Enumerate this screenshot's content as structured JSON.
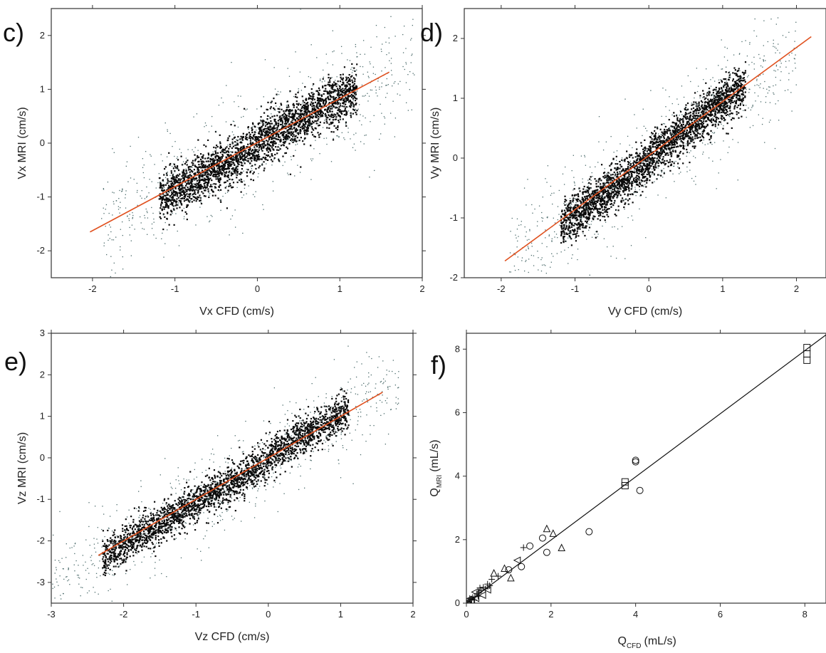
{
  "colors": {
    "points": "#0a0a0a",
    "sparse_points": "#4a6a6a",
    "fit_line": "#e0501e",
    "f_fit_line": "#111111",
    "axis": "#333333"
  },
  "chart_data": [
    {
      "panel": "c)",
      "type": "scatter",
      "xlabel": "Vx CFD (cm/s)",
      "ylabel": "Vx MRI (cm/s)",
      "xlim": [
        -2.5,
        2
      ],
      "ylim": [
        -2.5,
        2.5
      ],
      "xticks": [
        -2,
        -1,
        0,
        1,
        2
      ],
      "yticks": [
        -2,
        -1,
        0,
        1,
        2
      ],
      "fit_line": {
        "x": [
          -2.03,
          1.6
        ],
        "y": [
          -1.65,
          1.32
        ]
      },
      "cloud": {
        "x_range": [
          -1.2,
          1.2
        ],
        "slope": 0.82,
        "spread": 0.22,
        "jump_at_zero": 0.12
      }
    },
    {
      "panel": "d)",
      "type": "scatter",
      "xlabel": "Vy CFD (cm/s)",
      "ylabel": "Vy MRI (cm/s)",
      "xlim": [
        -2.5,
        2.4
      ],
      "ylim": [
        -2,
        2.5
      ],
      "xticks": [
        -2,
        -1,
        0,
        1,
        2
      ],
      "yticks": [
        -2,
        -1,
        0,
        1,
        2
      ],
      "fit_line": {
        "x": [
          -1.95,
          2.2
        ],
        "y": [
          -1.72,
          2.03
        ]
      },
      "cloud": {
        "x_range": [
          -1.2,
          1.3
        ],
        "slope": 0.9,
        "spread": 0.18,
        "jump_at_zero": 0.15
      }
    },
    {
      "panel": "e)",
      "type": "scatter",
      "xlabel": "Vz CFD (cm/s)",
      "ylabel": "Vz MRI (cm/s)",
      "xlim": [
        -3,
        2
      ],
      "ylim": [
        -3.5,
        3
      ],
      "xticks": [
        -3,
        -2,
        -1,
        0,
        1,
        2
      ],
      "yticks": [
        -3,
        -2,
        -1,
        0,
        1,
        2,
        3
      ],
      "fit_line": {
        "x": [
          -2.35,
          1.58
        ],
        "y": [
          -2.35,
          1.58
        ]
      },
      "cloud": {
        "x_range": [
          -2.3,
          1.1
        ],
        "slope": 1.0,
        "spread": 0.22,
        "jump_at_zero": 0.2
      }
    },
    {
      "panel": "f)",
      "type": "scatter",
      "xlabel_main": "Q",
      "xlabel_sub": "CFD",
      "xlabel_unit": "(mL/s)",
      "ylabel_main": "Q",
      "ylabel_sub": "MRI",
      "ylabel_unit": "(mL/s)",
      "xlim": [
        0,
        8.5
      ],
      "ylim": [
        0,
        8.5
      ],
      "xticks": [
        0,
        2,
        4,
        6,
        8
      ],
      "yticks": [
        0,
        2,
        4,
        6,
        8
      ],
      "fit_line": {
        "x": [
          0,
          8.5
        ],
        "y": [
          0,
          8.45
        ]
      },
      "series": [
        {
          "marker": "square",
          "points": [
            [
              8.05,
              8.05
            ],
            [
              8.05,
              7.85
            ],
            [
              8.05,
              7.65
            ],
            [
              3.75,
              3.82
            ],
            [
              3.75,
              3.7
            ]
          ]
        },
        {
          "marker": "circle",
          "points": [
            [
              4.0,
              4.5
            ],
            [
              4.0,
              4.45
            ],
            [
              4.1,
              3.55
            ],
            [
              2.9,
              2.25
            ],
            [
              1.9,
              1.6
            ],
            [
              1.8,
              2.05
            ],
            [
              1.3,
              1.15
            ],
            [
              1.0,
              1.05
            ],
            [
              1.5,
              1.8
            ]
          ]
        },
        {
          "marker": "triangle",
          "points": [
            [
              1.9,
              2.35
            ],
            [
              2.05,
              2.2
            ],
            [
              2.25,
              1.75
            ],
            [
              1.05,
              0.8
            ],
            [
              0.9,
              1.1
            ],
            [
              0.65,
              0.95
            ]
          ]
        },
        {
          "marker": "cross",
          "points": [
            [
              1.35,
              1.75
            ],
            [
              0.75,
              0.85
            ],
            [
              0.6,
              0.75
            ],
            [
              0.55,
              0.55
            ],
            [
              0.45,
              0.45
            ],
            [
              0.4,
              0.5
            ],
            [
              0.35,
              0.4
            ],
            [
              0.3,
              0.35
            ],
            [
              0.25,
              0.3
            ],
            [
              0.2,
              0.2
            ],
            [
              0.15,
              0.18
            ],
            [
              0.1,
              0.12
            ],
            [
              0.05,
              0.05
            ],
            [
              0.08,
              0.15
            ],
            [
              0.18,
              0.1
            ],
            [
              0.28,
              0.22
            ],
            [
              0.32,
              0.48
            ],
            [
              0.5,
              0.6
            ]
          ]
        },
        {
          "marker": "left-triangle",
          "points": [
            [
              1.2,
              1.35
            ],
            [
              0.5,
              0.42
            ],
            [
              0.2,
              0.35
            ],
            [
              0.12,
              0.05
            ],
            [
              0.05,
              0.12
            ],
            [
              0.02,
              0.02
            ],
            [
              0.22,
              0.15
            ],
            [
              0.38,
              0.25
            ]
          ]
        }
      ]
    }
  ]
}
